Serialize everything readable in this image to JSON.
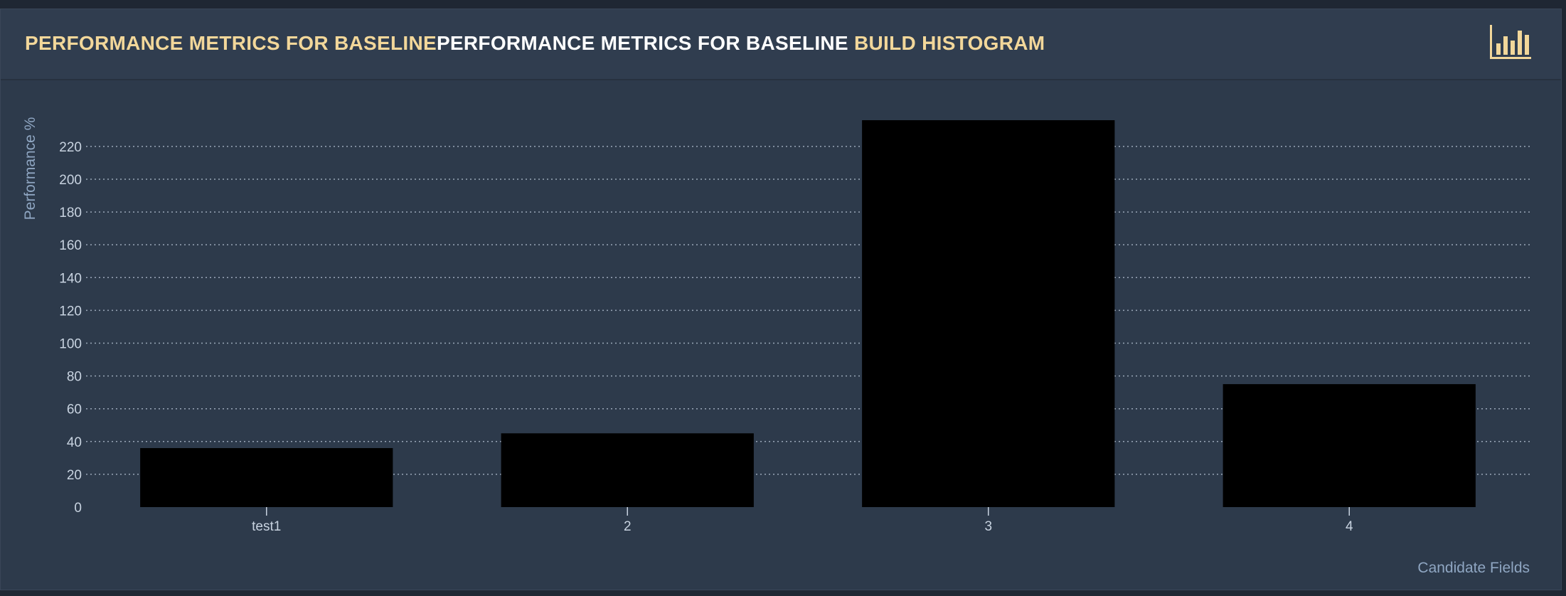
{
  "panel": {
    "title_parts": [
      {
        "text": "PERFORMANCE METRICS FOR BASELINE",
        "tone": "gold"
      },
      {
        "text": "PERFORMANCE METRICS FOR BASELINE ",
        "tone": "white"
      },
      {
        "text": "BUILD HISTOGRAM",
        "tone": "gold"
      }
    ],
    "icon": "bar-chart-icon"
  },
  "colors": {
    "accent": "#f2d79a",
    "bar": "#000000",
    "grid": "#9aa7b8",
    "axis_label": "#8fa6c2",
    "tick_label": "#c8d3e0"
  },
  "chart_data": {
    "type": "bar",
    "categories": [
      "test1",
      "2",
      "3",
      "4"
    ],
    "values": [
      36,
      45,
      236,
      75
    ],
    "xlabel": "Candidate Fields",
    "ylabel": "Performance %",
    "ylim": [
      0,
      236
    ],
    "yticks": [
      0,
      20,
      40,
      60,
      80,
      100,
      120,
      140,
      160,
      180,
      200,
      220
    ],
    "grid": true,
    "legend": "none"
  }
}
